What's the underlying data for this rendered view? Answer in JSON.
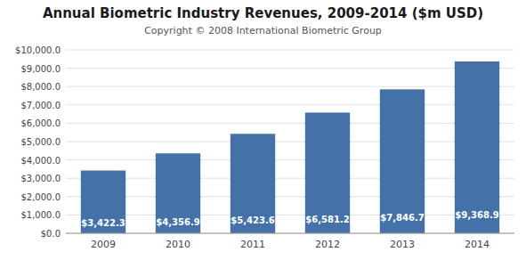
{
  "chart_data": {
    "type": "bar",
    "title": "Annual Biometric Industry Revenues, 2009-2014 ($m USD)",
    "subtitle": "Copyright © 2008 International Biometric Group",
    "categories": [
      "2009",
      "2010",
      "2011",
      "2012",
      "2013",
      "2014"
    ],
    "values": [
      3422.3,
      4356.9,
      5423.6,
      6581.2,
      7846.7,
      9368.9
    ],
    "value_labels": [
      "$3,422.3",
      "$4,356.9",
      "$5,423.6",
      "$6,581.2",
      "$7,846.7",
      "$9,368.9"
    ],
    "data_labels": true,
    "color": "#4472a8",
    "ylim": [
      0,
      10000
    ],
    "yticks": [
      {
        "value": 0,
        "label": "$0.0"
      },
      {
        "value": 1000,
        "label": "$1,000.0"
      },
      {
        "value": 2000,
        "label": "$2,000.0"
      },
      {
        "value": 3000,
        "label": "$3,000.0"
      },
      {
        "value": 4000,
        "label": "$4,000.0"
      },
      {
        "value": 5000,
        "label": "$5,000.0"
      },
      {
        "value": 6000,
        "label": "$6,000.0"
      },
      {
        "value": 7000,
        "label": "$7,000.0"
      },
      {
        "value": 8000,
        "label": "$8,000.0"
      },
      {
        "value": 9000,
        "label": "$9,000.0"
      },
      {
        "value": 10000,
        "label": "$10,000.0"
      }
    ],
    "grid": true
  }
}
